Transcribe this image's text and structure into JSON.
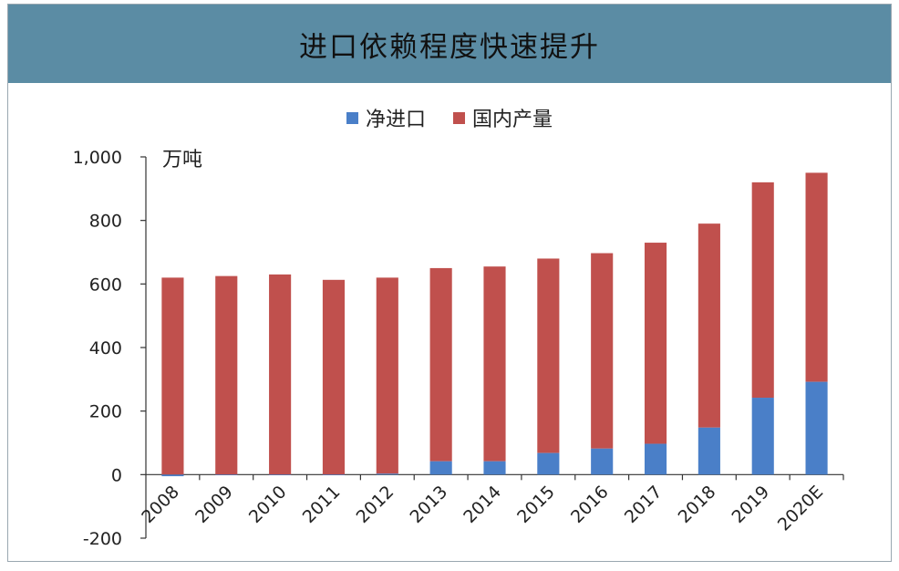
{
  "title": "进口依赖程度快速提升",
  "unit": "万吨",
  "colors": {
    "header": "#5b8ca4",
    "import": "#4a7fc8",
    "domestic": "#c0504d"
  },
  "legend": [
    {
      "label": "净进口",
      "color": "#4a7fc8"
    },
    {
      "label": "国内产量",
      "color": "#c0504d"
    }
  ],
  "chart_data": {
    "type": "bar",
    "stacked": true,
    "title": "进口依赖程度快速提升",
    "ylabel": "万吨",
    "ylim": [
      -200,
      1000
    ],
    "yticks": [
      -200,
      0,
      200,
      400,
      600,
      800,
      1000
    ],
    "ytick_labels": [
      "-200",
      "0",
      "200",
      "400",
      "600",
      "800",
      "1,000"
    ],
    "categories": [
      "2008",
      "2009",
      "2010",
      "2011",
      "2012",
      "2013",
      "2014",
      "2015",
      "2016",
      "2017",
      "2018",
      "2019",
      "2020E"
    ],
    "legend_position": "top-center",
    "grid": false,
    "series": [
      {
        "name": "净进口",
        "color": "#4a7fc8",
        "values": [
          -5,
          -2,
          -2,
          -2,
          3,
          42,
          42,
          68,
          82,
          97,
          148,
          242,
          292
        ]
      },
      {
        "name": "国内产量",
        "color": "#c0504d",
        "values": [
          620,
          625,
          630,
          613,
          617,
          608,
          613,
          612,
          615,
          633,
          642,
          678,
          658
        ]
      }
    ]
  }
}
